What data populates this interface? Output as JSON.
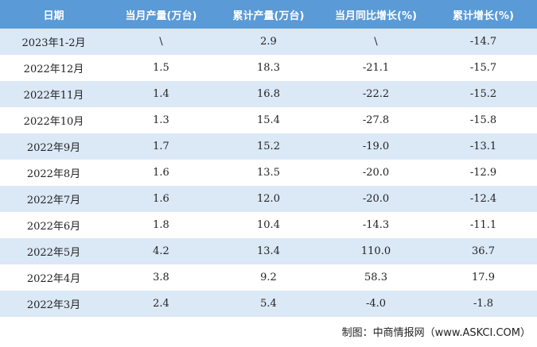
{
  "table": {
    "header": [
      "日期",
      "当月产量(万台)",
      "累计产量(万台)",
      "当月同比增长(%)",
      "累计增长(%)"
    ],
    "rows": [
      [
        "2023年1-2月",
        "\\",
        "2.9",
        "\\",
        "-14.7"
      ],
      [
        "2022年12月",
        "1.5",
        "18.3",
        "-21.1",
        "-15.7"
      ],
      [
        "2022年11月",
        "1.4",
        "16.8",
        "-22.2",
        "-15.2"
      ],
      [
        "2022年10月",
        "1.3",
        "15.4",
        "-27.8",
        "-15.8"
      ],
      [
        "2022年9月",
        "1.7",
        "15.2",
        "-19.0",
        "-13.1"
      ],
      [
        "2022年8月",
        "1.6",
        "13.5",
        "-20.0",
        "-12.9"
      ],
      [
        "2022年7月",
        "1.6",
        "12.0",
        "-20.0",
        "-12.4"
      ],
      [
        "2022年6月",
        "1.8",
        "10.4",
        "-14.3",
        "-11.1"
      ],
      [
        "2022年5月",
        "4.2",
        "13.4",
        "110.0",
        "36.7"
      ],
      [
        "2022年4月",
        "3.8",
        "9.2",
        "58.3",
        "17.9"
      ],
      [
        "2022年3月",
        "2.4",
        "5.4",
        "-4.0",
        "-1.8"
      ]
    ]
  },
  "footer": {
    "source": "制图：中商情报网（www.ASKCI.COM）"
  }
}
